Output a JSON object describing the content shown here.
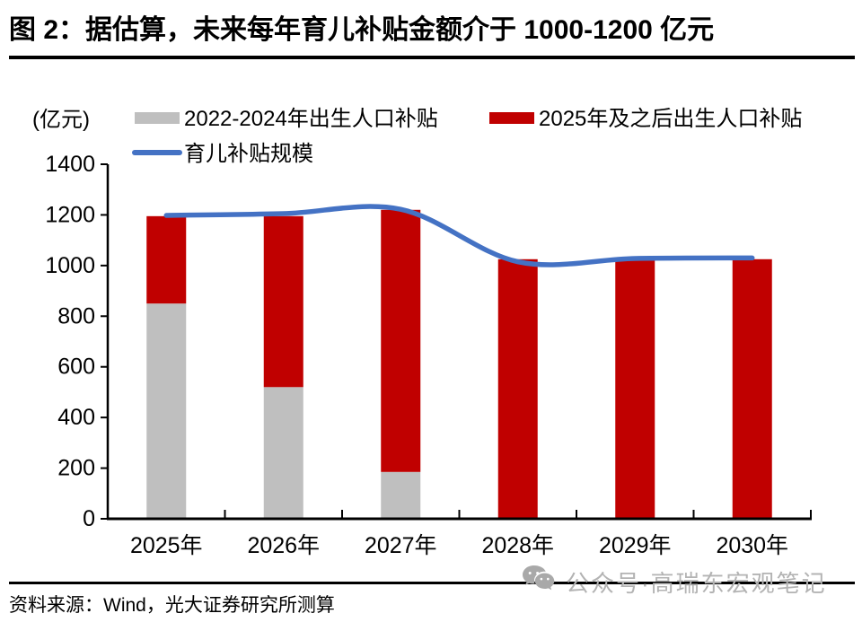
{
  "title": "图 2：据估算，未来每年育儿补贴金额介于 1000-1200 亿元",
  "source": "资料来源：Wind，光大证券研究所测算",
  "watermark": {
    "icon": "wechat-icon",
    "text": "公众号·高瑞东宏观笔记",
    "color": "#b3b3b3"
  },
  "chart_data": {
    "type": "bar",
    "subtype": "stacked-bars-with-smooth-line",
    "unit_label": "(亿元)",
    "categories": [
      "2025年",
      "2026年",
      "2027年",
      "2028年",
      "2029年",
      "2030年"
    ],
    "series": [
      {
        "name": "2022-2024年出生人口补贴",
        "type": "bar",
        "stack": true,
        "color": "#bfbfbf",
        "values": [
          850,
          520,
          185,
          0,
          0,
          0
        ]
      },
      {
        "name": "2025年及之后出生人口补贴",
        "type": "bar",
        "stack": true,
        "color": "#c00000",
        "values": [
          345,
          675,
          1035,
          1025,
          1025,
          1025
        ]
      },
      {
        "name": "育儿补贴规模",
        "type": "line",
        "color": "#4472c4",
        "values": [
          1198,
          1205,
          1222,
          1015,
          1028,
          1030
        ]
      }
    ],
    "bar_totals": [
      1195,
      1195,
      1220,
      1025,
      1025,
      1025
    ],
    "ylim": [
      0,
      1400
    ],
    "ytick_step": 200,
    "yticks": [
      0,
      200,
      400,
      600,
      800,
      1000,
      1200,
      1400
    ],
    "grid": false,
    "legend_position": "top",
    "axis_color": "#000000",
    "title": "据估算，未来每年育儿补贴金额介于 1000-1200 亿元"
  }
}
